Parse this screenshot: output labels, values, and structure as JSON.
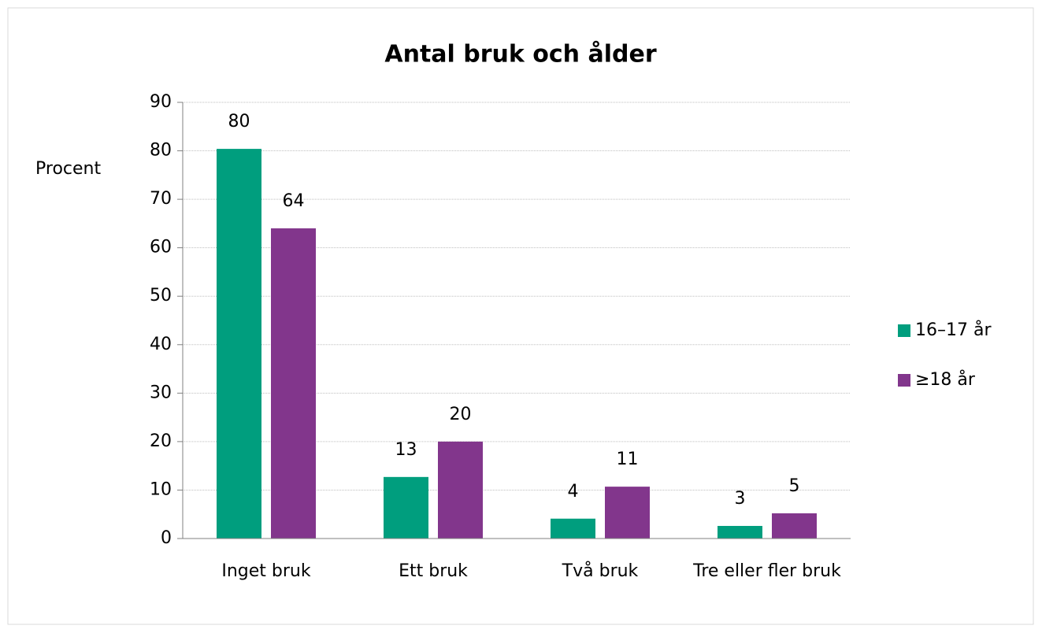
{
  "chart_data": {
    "type": "bar",
    "title": "Antal bruk och ålder",
    "y_label": "Procent",
    "categories": [
      "Inget bruk",
      "Ett bruk",
      "Två bruk",
      "Tre eller fler bruk"
    ],
    "series": [
      {
        "name": "16–17 år",
        "color": "#009e7e",
        "values": [
          80.4,
          12.7,
          4.1,
          2.6
        ],
        "value_labels": [
          "80",
          "13",
          "4",
          "3"
        ]
      },
      {
        "name": "≥18 år",
        "color": "#82368c",
        "values": [
          64,
          20,
          10.7,
          5.2
        ],
        "value_labels": [
          "64",
          "20",
          "11",
          "5"
        ]
      }
    ],
    "ylim": [
      0,
      90
    ],
    "yticks": [
      0,
      10,
      20,
      30,
      40,
      50,
      60,
      70,
      80,
      90
    ],
    "grid": true,
    "legend": "right"
  }
}
